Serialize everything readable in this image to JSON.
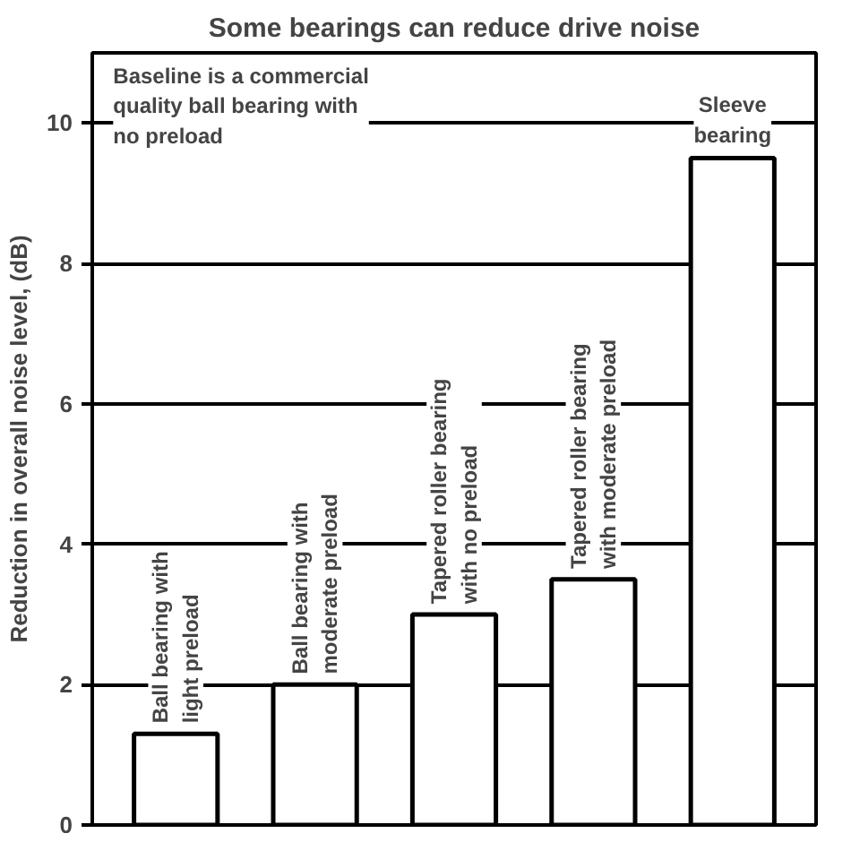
{
  "chart_data": {
    "type": "bar",
    "title": "Some bearings can reduce drive noise",
    "ylabel": "Reduction in overall noise level, (dB)",
    "categories": [
      "Ball bearing with light preload",
      "Ball bearing with moderate preload",
      "Tapered roller bearing with no preload",
      "Tapered roller bearing with moderate preload",
      "Sleeve bearing"
    ],
    "values": [
      1.3,
      2.0,
      3.0,
      3.5,
      9.5
    ],
    "color": "#ffffff",
    "ylim": [
      0,
      11
    ],
    "yticks": [
      0,
      2,
      4,
      6,
      8,
      10
    ],
    "grid": "y",
    "tick_labels": "y",
    "annotations": [
      "Baseline is a commercial quality ball bearing with no preload"
    ]
  }
}
